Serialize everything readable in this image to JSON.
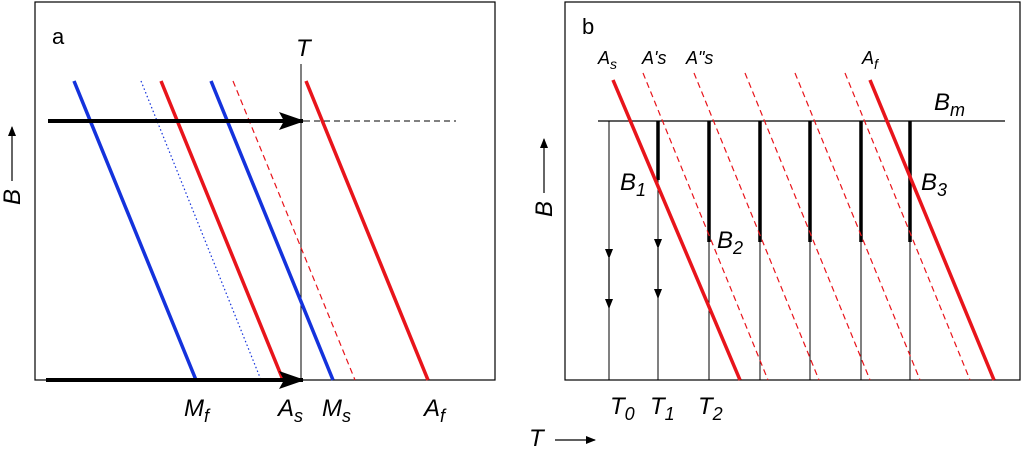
{
  "colors": {
    "red": "#e8141b",
    "blue": "#1432dc",
    "black": "#000000"
  },
  "panel_a": {
    "letter": "a",
    "y_label": "B",
    "t_label": "T",
    "mf_label": "M",
    "mf_sub": "f",
    "as_label": "A",
    "as_sub": "s",
    "ms_label": "M",
    "ms_sub": "s",
    "af_label": "A",
    "af_sub": "f"
  },
  "panel_b": {
    "letter": "b",
    "y_label": "B",
    "as_label": "A",
    "as_sub": "s",
    "aps_label": "A's",
    "apps_label": "A\"s",
    "af_label": "A",
    "af_sub": "f",
    "bm_label": "B",
    "bm_sub": "m",
    "b1_label": "B",
    "b1_sub": "1",
    "b2_label": "B",
    "b2_sub": "2",
    "b3_label": "B",
    "b3_sub": "3",
    "t0_label": "T",
    "t0_sub": "0",
    "t1_label": "T",
    "t1_sub": "1",
    "t2_label": "T",
    "t2_sub": "2"
  },
  "x_axis_label": "T"
}
